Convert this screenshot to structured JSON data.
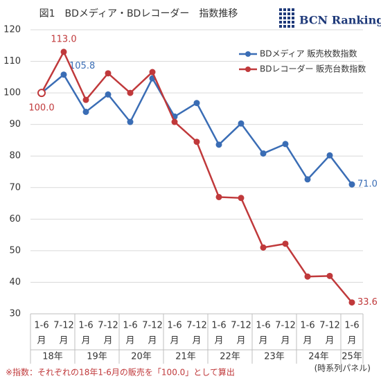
{
  "chart_data": {
    "type": "line",
    "title": "図1　BDメディア・BDレコーダー　指数推移",
    "logo": "BCN Ranking",
    "categories": [
      [
        "1-6",
        "月"
      ],
      [
        "7-12",
        "月"
      ],
      [
        "1-6",
        "月"
      ],
      [
        "7-12",
        "月"
      ],
      [
        "1-6",
        "月"
      ],
      [
        "7-12",
        "月"
      ],
      [
        "1-6",
        "月"
      ],
      [
        "7-12",
        "月"
      ],
      [
        "1-6",
        "月"
      ],
      [
        "7-12",
        "月"
      ],
      [
        "1-6",
        "月"
      ],
      [
        "7-12",
        "月"
      ],
      [
        "1-6",
        "月"
      ],
      [
        "7-12",
        "月"
      ],
      [
        "1-6",
        "月"
      ]
    ],
    "category_groups": [
      "18年",
      "19年",
      "20年",
      "21年",
      "22年",
      "23年",
      "24年",
      "25年"
    ],
    "panel_note": "(時系列パネル)",
    "footnote": "※指数：それぞれの18年1-6月の販売を「100.0」として算出",
    "series": [
      {
        "name": "BDメディア 販売枚数指数",
        "color": "#3a6db5",
        "values": [
          100.0,
          105.8,
          94.0,
          99.5,
          90.8,
          104.6,
          92.5,
          96.8,
          83.6,
          90.3,
          80.8,
          83.8,
          72.6,
          80.2,
          71.0
        ],
        "value_labels": [
          null,
          "105.8",
          null,
          null,
          null,
          null,
          null,
          null,
          null,
          null,
          null,
          null,
          null,
          null,
          "71.0"
        ]
      },
      {
        "name": "BDレコーダー 販売台数指数",
        "color": "#c0393b",
        "hollow_first": true,
        "values": [
          100.0,
          113.0,
          97.8,
          106.2,
          100.0,
          106.6,
          90.8,
          84.5,
          67.0,
          66.7,
          51.0,
          52.2,
          41.8,
          42.0,
          33.6
        ],
        "value_labels": [
          "100.0",
          "113.0",
          null,
          null,
          null,
          null,
          null,
          null,
          null,
          null,
          null,
          null,
          null,
          null,
          "33.6"
        ]
      }
    ],
    "ylim": [
      30,
      120
    ],
    "yticks": [
      30,
      40,
      50,
      60,
      70,
      80,
      90,
      100,
      110,
      120
    ],
    "grid": true,
    "legend": "upper right"
  }
}
